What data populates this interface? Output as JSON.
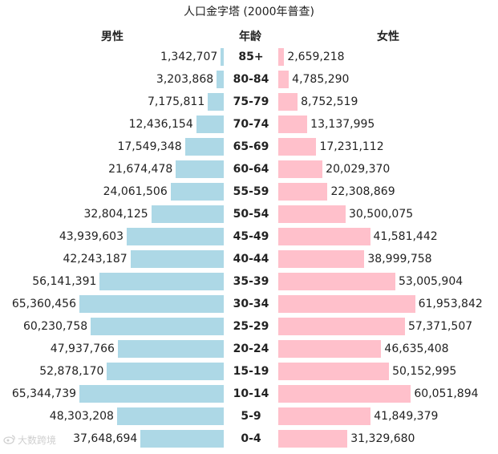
{
  "chart_data": {
    "type": "bar",
    "orientation": "horizontal-pyramid",
    "title": "人口金字塔 (2000年普查)",
    "left_header": "男性",
    "center_header": "年龄",
    "right_header": "女性",
    "colors": {
      "male": "#add8e6",
      "female": "#ffc0cb"
    },
    "categories": [
      "85+",
      "80-84",
      "75-79",
      "70-74",
      "65-69",
      "60-64",
      "55-59",
      "50-54",
      "45-49",
      "40-44",
      "35-39",
      "30-34",
      "25-29",
      "20-24",
      "15-19",
      "10-14",
      "5-9",
      "0-4"
    ],
    "series": [
      {
        "name": "男性",
        "values": [
          1342707,
          3203868,
          7175811,
          12436154,
          17549348,
          21674478,
          24061506,
          32804125,
          43939603,
          42243187,
          56141391,
          65360456,
          60230758,
          47937766,
          52878170,
          65344739,
          48303208,
          37648694
        ],
        "labels": [
          "1,342,707",
          "3,203,868",
          "7,175,811",
          "12,436,154",
          "17,549,348",
          "21,674,478",
          "24,061,506",
          "32,804,125",
          "43,939,603",
          "42,243,187",
          "56,141,391",
          "65,360,456",
          "60,230,758",
          "47,937,766",
          "52,878,170",
          "65,344,739",
          "48,303,208",
          "37,648,694"
        ]
      },
      {
        "name": "女性",
        "values": [
          2659218,
          4785290,
          8752519,
          13137995,
          17231112,
          20029370,
          22308869,
          30500075,
          41581442,
          38999758,
          53005904,
          61953842,
          57371507,
          46635408,
          50152995,
          60051894,
          41849379,
          31329680
        ],
        "labels": [
          "2,659,218",
          "4,785,290",
          "8,752,519",
          "13,137,995",
          "17,231,112",
          "20,029,370",
          "22,308,869",
          "30,500,075",
          "41,581,442",
          "38,999,758",
          "53,005,904",
          "61,953,842",
          "57,371,507",
          "46,635,408",
          "50,152,995",
          "60,051,894",
          "41,849,379",
          "31,329,680"
        ]
      }
    ]
  },
  "watermark": {
    "text": "大数跨境",
    "logo_icon": "weibo-style-icon"
  }
}
